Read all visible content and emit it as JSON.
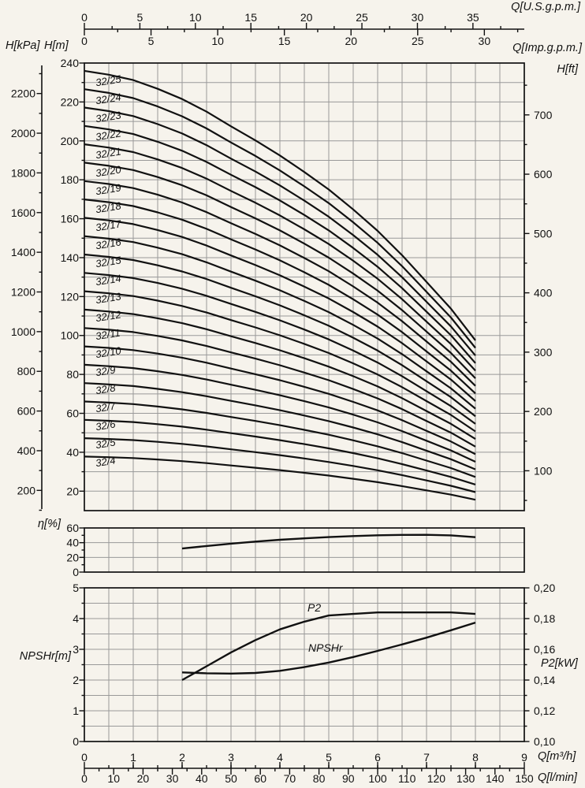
{
  "figure": {
    "background": "#f6f3ec",
    "ink": "#111111",
    "grid_color": "#999999"
  },
  "labels": {
    "h_kpa": "H[kPa]",
    "h_m": "H[m]",
    "q_usgpm": "Q[U.S.g.p.m.]",
    "q_impgpm": "Q[Imp.g.p.m.]",
    "h_ft": "H[ft]",
    "eta_pct": "η[%]",
    "npshr_m": "NPSHr[m]",
    "p2_kw": "P2[kW]",
    "q_m3h": "Q[m³/h]",
    "q_lmin": "Q[l/min]"
  },
  "chart_data": {
    "type": "line",
    "main_panel": {
      "description": "Multistage pump head curves 32/4 to 32/25, head per stage sampled vs flow",
      "x_m3h": [
        0,
        0.5,
        1,
        1.5,
        2,
        2.5,
        3,
        3.5,
        4,
        4.5,
        5,
        5.5,
        6,
        6.5,
        7,
        7.5,
        8
      ],
      "per_stage_head_m": [
        9.44,
        9.36,
        9.25,
        9.07,
        8.86,
        8.6,
        8.3,
        8.01,
        7.7,
        7.36,
        7.0,
        6.59,
        6.15,
        5.65,
        5.1,
        4.55,
        3.9
      ],
      "curves": [
        {
          "label": "32/25",
          "stages": 25
        },
        {
          "label": "32/24",
          "stages": 24
        },
        {
          "label": "32/23",
          "stages": 23
        },
        {
          "label": "32/22",
          "stages": 22
        },
        {
          "label": "32/21",
          "stages": 21
        },
        {
          "label": "32/20",
          "stages": 20
        },
        {
          "label": "32/19",
          "stages": 19
        },
        {
          "label": "32/18",
          "stages": 18
        },
        {
          "label": "32/17",
          "stages": 17
        },
        {
          "label": "32/16",
          "stages": 16
        },
        {
          "label": "32/15",
          "stages": 15
        },
        {
          "label": "32/14",
          "stages": 14
        },
        {
          "label": "32/13",
          "stages": 13
        },
        {
          "label": "32/12",
          "stages": 12
        },
        {
          "label": "32/11",
          "stages": 11
        },
        {
          "label": "32/10",
          "stages": 10
        },
        {
          "label": "32/9",
          "stages": 9
        },
        {
          "label": "32/8",
          "stages": 8
        },
        {
          "label": "32/7",
          "stages": 7
        },
        {
          "label": "32/6",
          "stages": 6
        },
        {
          "label": "32/5",
          "stages": 5
        },
        {
          "label": "32/4",
          "stages": 4
        }
      ],
      "ylim_m": [
        10,
        240
      ],
      "xlim_m3h": [
        0,
        9
      ],
      "yticks_m": [
        20,
        40,
        60,
        80,
        100,
        120,
        140,
        160,
        180,
        200,
        220,
        240
      ],
      "yticks_kpa": [
        200,
        400,
        600,
        800,
        1000,
        1200,
        1400,
        1600,
        1800,
        2000,
        2200
      ],
      "yticks_ft": [
        100,
        200,
        300,
        400,
        500,
        600,
        700
      ],
      "xticks_usgpm": [
        0,
        5,
        10,
        15,
        20,
        25,
        30,
        35
      ],
      "xticks_impgpm": [
        0,
        5,
        10,
        15,
        20,
        25,
        30
      ],
      "grid": true
    },
    "efficiency_panel": {
      "x_m3h": [
        2,
        2.5,
        3,
        3.5,
        4,
        4.5,
        5,
        5.5,
        6,
        6.5,
        7,
        7.5,
        8
      ],
      "eta_pct": [
        32,
        35.5,
        38.7,
        41.5,
        43.9,
        45.9,
        47.6,
        49.0,
        50.0,
        50.6,
        50.7,
        49.9,
        47.5
      ],
      "ylim_pct": [
        0,
        60
      ],
      "yticks_pct": [
        0,
        20,
        40,
        60
      ]
    },
    "npsh_power_panel": {
      "x_m3h": [
        2,
        2.5,
        3,
        3.5,
        4,
        4.5,
        5,
        5.5,
        6,
        6.5,
        7,
        7.5,
        8
      ],
      "series": [
        {
          "name": "P2",
          "unit": "kW",
          "values": [
            0.14,
            0.149,
            0.158,
            0.166,
            0.173,
            0.178,
            0.182,
            0.183,
            0.184,
            0.184,
            0.184,
            0.184,
            0.183
          ]
        },
        {
          "name": "NPSHr",
          "unit": "m",
          "values": [
            2.25,
            2.22,
            2.21,
            2.23,
            2.3,
            2.42,
            2.57,
            2.75,
            2.95,
            3.16,
            3.38,
            3.62,
            3.87
          ]
        }
      ],
      "ylim_left_m": [
        0,
        5
      ],
      "yticks_left_m": [
        0,
        1,
        2,
        3,
        4,
        5
      ],
      "ylim_right_kw": [
        0.1,
        0.2
      ],
      "yticks_right_kw": [
        "0,10",
        "0,12",
        "0,14",
        "0,16",
        "0,18",
        "0,20"
      ]
    },
    "x_bottom": {
      "m3h_ticks": [
        0,
        1,
        2,
        3,
        4,
        5,
        6,
        7,
        8,
        9
      ],
      "lmin_ticks": [
        0,
        10,
        20,
        30,
        40,
        50,
        60,
        70,
        80,
        90,
        100,
        110,
        120,
        130,
        140,
        150
      ]
    }
  }
}
